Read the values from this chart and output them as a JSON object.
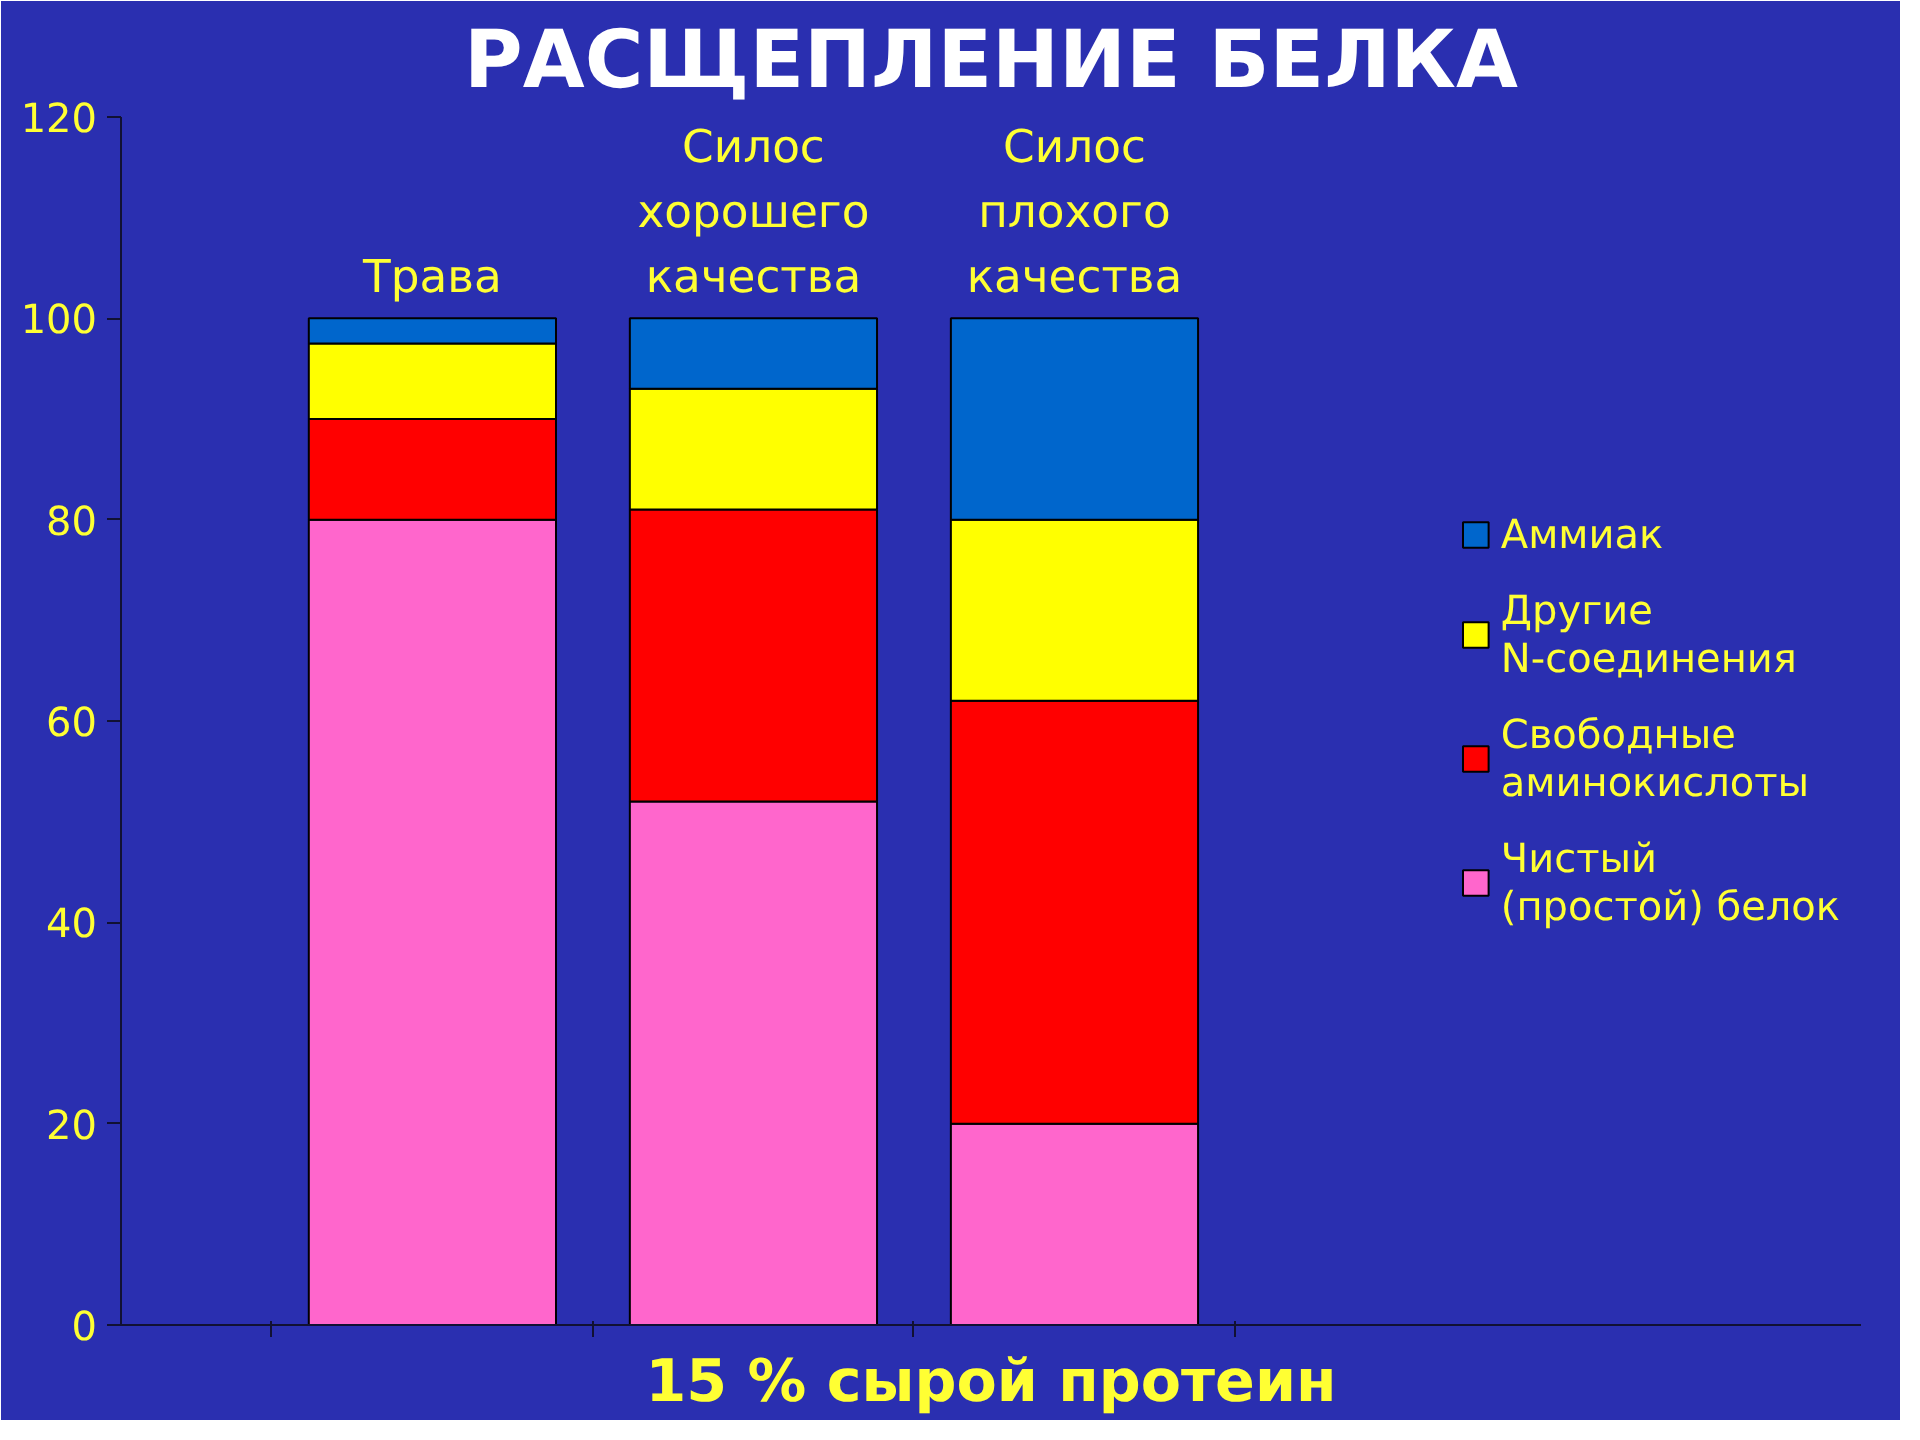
{
  "chart_data": {
    "type": "bar",
    "stacked": true,
    "title": "РАСЩЕПЛЕНИЕ БЕЛКА",
    "xlabel": "15 % сырой протеин",
    "categories": [
      "Трава",
      "Силос\nхорошего\nкачества",
      "Силос\nплохого\nкачества"
    ],
    "series": [
      {
        "name": "Чистый\n(простой) белок",
        "color": "#ff66cc",
        "values": [
          80,
          52,
          20
        ]
      },
      {
        "name": "Свободные\nаминокислоты",
        "color": "#ff0000",
        "values": [
          10,
          29,
          42
        ]
      },
      {
        "name": "Другие\nN-соединения",
        "color": "#ffff00",
        "values": [
          7.5,
          12,
          18
        ]
      },
      {
        "name": "Аммиак",
        "color": "#0066cc",
        "values": [
          2.5,
          7,
          20
        ]
      }
    ],
    "ylim": [
      0,
      120
    ],
    "yticks": [
      0,
      20,
      40,
      60,
      80,
      100,
      120
    ],
    "grid": false,
    "legend": "right",
    "tick_labels": "y"
  }
}
